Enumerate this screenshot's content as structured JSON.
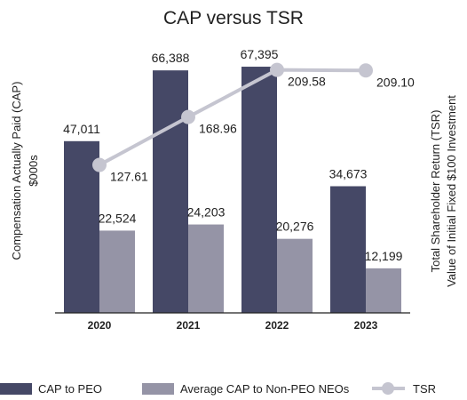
{
  "chart_data": {
    "type": "bar",
    "title": "CAP versus TSR",
    "ylabel_left": [
      "Compensation Actually Paid (CAP)",
      "$000s"
    ],
    "ylabel_right": [
      "Total Shareholder Return (TSR)",
      "Value of Initial Fixed $100 Investment"
    ],
    "categories": [
      "2020",
      "2021",
      "2022",
      "2023"
    ],
    "ylim": [
      0,
      73000
    ],
    "tsr_ylim": [
      0,
      230
    ],
    "series": [
      {
        "name": "CAP to PEO",
        "type": "bar",
        "axis": "left",
        "color": "#454866",
        "values": [
          47011,
          66388,
          67395,
          34673
        ],
        "labels": [
          "47,011",
          "66,388",
          "67,395",
          "34,673"
        ]
      },
      {
        "name": "Average CAP to Non-PEO NEOs",
        "type": "bar",
        "axis": "left",
        "color": "#9594a6",
        "values": [
          22524,
          24203,
          20276,
          12199
        ],
        "labels": [
          "22,524",
          "24,203",
          "20,276",
          "12,199"
        ]
      },
      {
        "name": "TSR",
        "type": "line",
        "axis": "right",
        "color": "#c5c5d0",
        "values": [
          127.61,
          168.96,
          209.58,
          209.1
        ],
        "labels": [
          "127.61",
          "168.96",
          "209.58",
          "209.10"
        ]
      }
    ],
    "grid": false,
    "legend": "bottom"
  }
}
